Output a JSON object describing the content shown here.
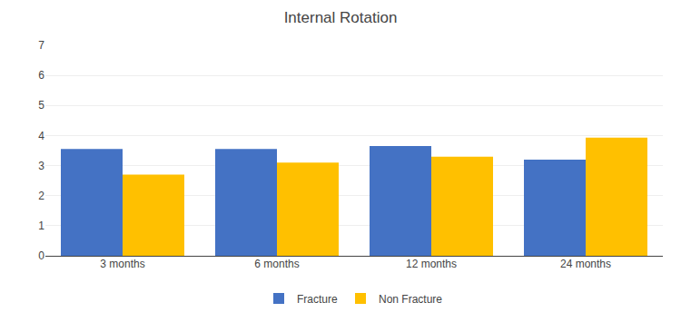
{
  "chart_data": {
    "type": "bar",
    "title": "Internal Rotation",
    "categories": [
      "3 months",
      "6 months",
      "12 months",
      "24 months"
    ],
    "series": [
      {
        "name": "Fracture",
        "color": "#4472C4",
        "values": [
          3.55,
          3.55,
          3.65,
          3.2
        ]
      },
      {
        "name": "Non Fracture",
        "color": "#FFC000",
        "values": [
          2.7,
          3.1,
          3.3,
          3.93
        ]
      }
    ],
    "ylim": [
      0,
      7
    ],
    "yticks": [
      0,
      1,
      2,
      3,
      4,
      5,
      6,
      7
    ],
    "grid": true,
    "legend": "bottom"
  }
}
